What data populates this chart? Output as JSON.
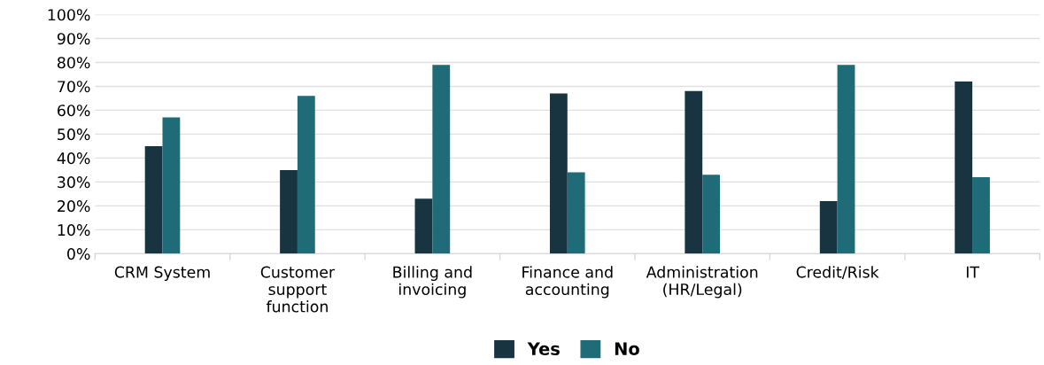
{
  "chart_data": {
    "type": "bar",
    "categories": [
      "CRM System",
      "Customer\nsupport\nfunction",
      "Billing and\ninvoicing",
      "Finance and\naccounting",
      "Administration\n(HR/Legal)",
      "Credit/Risk",
      "IT"
    ],
    "series": [
      {
        "name": "Yes",
        "color": "#193441",
        "values": [
          45,
          35,
          23,
          67,
          68,
          22,
          72
        ]
      },
      {
        "name": "No",
        "color": "#1f6b78",
        "values": [
          57,
          66,
          79,
          34,
          33,
          79,
          32
        ]
      }
    ],
    "ylim": [
      0,
      100
    ],
    "yticks": [
      {
        "value": 0,
        "label": "0%"
      },
      {
        "value": 10,
        "label": "10%"
      },
      {
        "value": 20,
        "label": "20%"
      },
      {
        "value": 30,
        "label": "30%"
      },
      {
        "value": 40,
        "label": "40%"
      },
      {
        "value": 50,
        "label": "50%"
      },
      {
        "value": 60,
        "label": "60%"
      },
      {
        "value": 70,
        "label": "70%"
      },
      {
        "value": 80,
        "label": "80%"
      },
      {
        "value": 90,
        "label": "90%"
      },
      {
        "value": 100,
        "label": "100%"
      }
    ],
    "grid": "y",
    "legend": "bottom"
  }
}
